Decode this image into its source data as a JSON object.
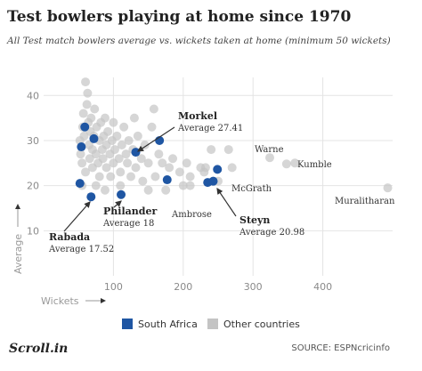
{
  "chart_data": {
    "type": "scatter",
    "title": "Test bowlers playing at home since 1970",
    "subtitle": "All Test match bowlers average vs. wickets taken at home (minimum 50 wickets)",
    "x_label": "Wickets",
    "y_label": "Average",
    "xlim": [
      0,
      500
    ],
    "ylim": [
      0,
      44
    ],
    "xticks": [
      100,
      200,
      300,
      400
    ],
    "yticks": [
      10,
      20,
      30,
      40
    ],
    "grid": true,
    "series": [
      {
        "name": "South Africa",
        "color": "#1f56a3",
        "x": [
          59,
          54,
          72,
          52,
          68,
          111,
          132,
          166,
          177,
          235,
          243,
          249
        ],
        "values": [
          33,
          28.6,
          30.4,
          20.5,
          17.52,
          18,
          27.41,
          30,
          21.3,
          20.7,
          20.98,
          23.6
        ]
      },
      {
        "name": "Other countries",
        "color": "#c4c4c4",
        "x": [
          52,
          53,
          55,
          56,
          57,
          58,
          60,
          62,
          63,
          64,
          65,
          66,
          67,
          68,
          70,
          70,
          72,
          73,
          75,
          76,
          78,
          80,
          80,
          82,
          84,
          85,
          86,
          88,
          90,
          90,
          92,
          95,
          96,
          98,
          100,
          100,
          102,
          105,
          108,
          110,
          112,
          115,
          118,
          120,
          122,
          125,
          128,
          130,
          132,
          135,
          140,
          142,
          145,
          150,
          155,
          158,
          160,
          165,
          170,
          175,
          180,
          185,
          195,
          200,
          205,
          210,
          225,
          230,
          240,
          250,
          265,
          270,
          324,
          348,
          360,
          493,
          55,
          60,
          75,
          88,
          110,
          150,
          210,
          232
        ],
        "values": [
          30,
          27,
          25,
          33,
          36,
          31,
          43,
          38,
          40.5,
          34,
          29,
          26,
          32,
          35,
          24,
          28,
          31,
          37,
          27,
          33,
          25,
          30,
          22,
          34,
          28,
          26,
          31,
          35,
          24,
          29,
          32,
          27,
          22,
          30,
          25,
          34,
          28,
          31,
          26,
          23,
          29,
          33,
          27,
          25,
          30,
          22,
          28,
          35,
          24,
          31,
          26,
          21,
          29,
          25,
          33,
          37,
          22,
          27,
          25,
          19,
          24,
          26,
          23,
          20,
          25,
          22,
          24,
          23,
          28,
          21,
          28,
          24,
          26.2,
          24.8,
          25,
          19.5,
          20,
          23,
          20,
          19,
          20,
          19,
          20,
          24
        ]
      }
    ],
    "annotations": [
      {
        "label": "Morkel",
        "note": "Average 27.41"
      },
      {
        "label": "Philander",
        "note": "Average 18"
      },
      {
        "label": "Rabada",
        "note": "Average 17.52"
      },
      {
        "label": "Steyn",
        "note": "Average 20.98"
      },
      {
        "label": "Warne"
      },
      {
        "label": "Kumble"
      },
      {
        "label": "McGrath"
      },
      {
        "label": "Ambrose"
      },
      {
        "label": "Muralitharan"
      }
    ],
    "logo": "Scroll.in",
    "source": "SOURCE: ESPNcricinfo"
  }
}
